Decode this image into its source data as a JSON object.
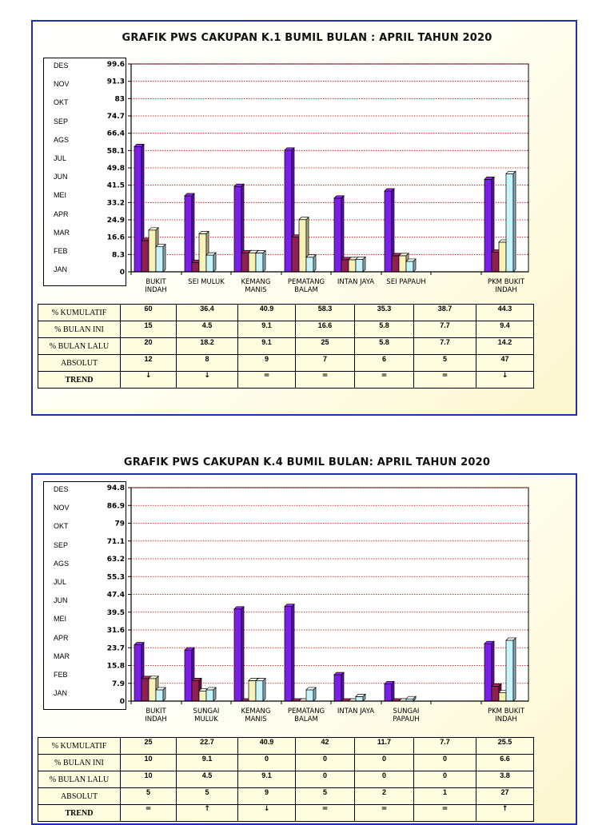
{
  "legend_months": [
    "DES",
    "NOV",
    "OKT",
    "SEP",
    "AGS",
    "JUL",
    "JUN",
    "MEI",
    "APR",
    "MAR",
    "FEB",
    "JAN"
  ],
  "table_row_labels": [
    "% KUMULATIF",
    "% BULAN INI",
    "% BULAN LALU",
    "ABSOLUT",
    "TREND"
  ],
  "colors": {
    "kumulatif": "#7c1fe6",
    "bulan_ini": "#8e2150",
    "bulan_lalu": "#f7f2b8",
    "absolut": "#c8f4ff"
  },
  "charts": [
    {
      "title": "GRAFIK PWS CAKUPAN  K.1 BUMIL  BULAN :  APRIL TAHUN 2020",
      "chart_data": {
        "type": "bar",
        "categories": [
          [
            "BUKIT",
            "INDAH"
          ],
          [
            "SEI MULUK"
          ],
          [
            "KEMANG",
            "MANIS"
          ],
          [
            "PEMATANG",
            "BALAM"
          ],
          [
            "INTAN JAYA"
          ],
          [
            "SEI PAPAUH"
          ],
          [
            ""
          ],
          [
            "PKM BUKIT",
            "INDAH"
          ]
        ],
        "yticks": [
          "0",
          "8.3",
          "16.6",
          "24.9",
          "33.2",
          "41.5",
          "49.8",
          "58.1",
          "66.4",
          "74.7",
          "83",
          "91.3",
          "99.6"
        ],
        "ylim": [
          0,
          99.6
        ],
        "grid": true,
        "series": [
          {
            "key": "kumulatif",
            "values": [
              60,
              36.4,
              40.9,
              58.3,
              35.3,
              38.7,
              null,
              44.3
            ]
          },
          {
            "key": "bulan_ini",
            "values": [
              15,
              4.5,
              9.1,
              16.6,
              5.8,
              7.7,
              null,
              9.4
            ]
          },
          {
            "key": "bulan_lalu",
            "values": [
              20,
              18.2,
              9.1,
              25,
              5.8,
              7.7,
              null,
              14.2
            ]
          },
          {
            "key": "absolut",
            "values": [
              12,
              8,
              9,
              7,
              6,
              5,
              null,
              47
            ]
          }
        ]
      },
      "table": [
        [
          "60",
          "36.4",
          "40.9",
          "58.3",
          "35.3",
          "38.7",
          "44.3"
        ],
        [
          "15",
          "4.5",
          "9.1",
          "16.6",
          "5.8",
          "7.7",
          "9.4"
        ],
        [
          "20",
          "18.2",
          "9.1",
          "25",
          "5.8",
          "7.7",
          "14.2"
        ],
        [
          "12",
          "8",
          "9",
          "7",
          "6",
          "5",
          "47"
        ],
        [
          "↓",
          "↓",
          "=",
          "=",
          "=",
          "=",
          "↓"
        ]
      ]
    },
    {
      "title": "GRAFIK PWS CAKUPAN  K.4 BUMIL  BULAN:   APRIL TAHUN 2020",
      "chart_data": {
        "type": "bar",
        "categories": [
          [
            "BUKIT",
            "INDAH"
          ],
          [
            "SUNGAI",
            "MULUK"
          ],
          [
            "KEMANG",
            "MANIS"
          ],
          [
            "PEMATANG",
            "BALAM"
          ],
          [
            "INTAN JAYA"
          ],
          [
            "SUNGAI",
            "PAPAUH"
          ],
          [
            ""
          ],
          [
            "PKM BUKIT",
            "INDAH"
          ]
        ],
        "yticks": [
          "0",
          "7.9",
          "15.8",
          "23.7",
          "31.6",
          "39.5",
          "47.4",
          "55.3",
          "63.2",
          "71.1",
          "79",
          "86.9",
          "94.8"
        ],
        "ylim": [
          0,
          94.8
        ],
        "grid": true,
        "series": [
          {
            "key": "kumulatif",
            "values": [
              25,
              22.7,
              40.9,
              42,
              11.7,
              7.7,
              null,
              25.5
            ]
          },
          {
            "key": "bulan_ini",
            "values": [
              10,
              9.1,
              0,
              0,
              0,
              0,
              null,
              6.6
            ]
          },
          {
            "key": "bulan_lalu",
            "values": [
              10,
              4.5,
              9.1,
              0,
              0,
              0,
              null,
              3.8
            ]
          },
          {
            "key": "absolut",
            "values": [
              5,
              5,
              9,
              5,
              2,
              1,
              null,
              27
            ]
          }
        ]
      },
      "table": [
        [
          "25",
          "22.7",
          "40.9",
          "42",
          "11.7",
          "7.7",
          "25.5"
        ],
        [
          "10",
          "9.1",
          "0",
          "0",
          "0",
          "0",
          "6.6"
        ],
        [
          "10",
          "4.5",
          "9.1",
          "0",
          "0",
          "0",
          "3.8"
        ],
        [
          "5",
          "5",
          "9",
          "5",
          "2",
          "1",
          "27"
        ],
        [
          "=",
          "↑",
          "↓",
          "=",
          "=",
          "=",
          "↑"
        ]
      ]
    }
  ]
}
